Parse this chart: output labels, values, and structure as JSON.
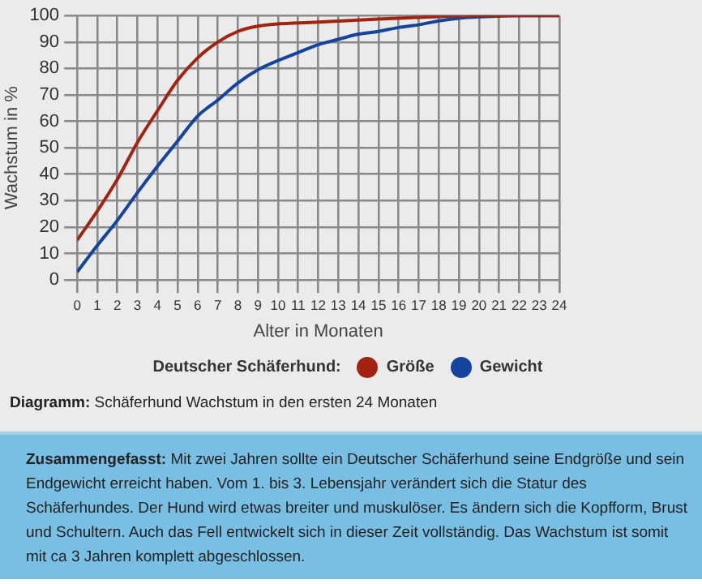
{
  "chart_data": {
    "type": "line",
    "xlabel": "Alter in Monaten",
    "ylabel": "Wachstum in %",
    "legend_title": "Deutscher Schäferhund:",
    "legend": "bottom",
    "grid": true,
    "marker": "none",
    "line_style": "solid",
    "xlim": [
      0,
      24
    ],
    "xticks": [
      0,
      1,
      2,
      3,
      4,
      5,
      6,
      7,
      8,
      9,
      10,
      11,
      12,
      13,
      14,
      15,
      16,
      17,
      18,
      19,
      20,
      21,
      22,
      23,
      24
    ],
    "ylim": [
      0,
      100
    ],
    "yticks": [
      0,
      10,
      20,
      30,
      40,
      50,
      60,
      70,
      80,
      90,
      100
    ],
    "series": [
      {
        "name": "Größe",
        "color": "#a3230f",
        "x": [
          0,
          1,
          2,
          3,
          4,
          5,
          6,
          7,
          8,
          9,
          12,
          15,
          18,
          20,
          24
        ],
        "values": [
          15,
          26,
          38,
          52,
          64,
          75.5,
          84,
          90,
          94,
          96,
          97.5,
          98.7,
          99.6,
          100,
          100
        ]
      },
      {
        "name": "Gewicht",
        "color": "#1443a0",
        "x": [
          0,
          1,
          2,
          3,
          4,
          5,
          6,
          7,
          8,
          9,
          10,
          11,
          12,
          13,
          14,
          15,
          16,
          17,
          18,
          19,
          20,
          22,
          24
        ],
        "values": [
          3,
          13,
          22.5,
          33,
          43,
          52.5,
          62,
          68,
          74.5,
          79.5,
          83,
          86,
          89,
          91,
          93,
          94,
          95.5,
          96.5,
          98,
          99,
          99.5,
          100,
          100
        ]
      }
    ],
    "annotations": [
      "Diagramm: Schäferhund Wachstum in den ersten 24 Monaten",
      "Zusammengefasst: Mit zwei Jahren sollte ein Deutscher Schäferhund seine Endgröße und sein Endgewicht erreicht haben. Vom 1. bis 3. Lebensjahr verändert sich die Statur des Schäferhundes. Der Hund wird etwas breiter und muskulöser. Es ändern sich die Kopfform, Brust und Schultern. Auch das Fell entwickelt sich in dieser Zeit vollständig. Das Wachstum ist somit mit ca 3 Jahren komplett abgeschlossen."
    ]
  }
}
